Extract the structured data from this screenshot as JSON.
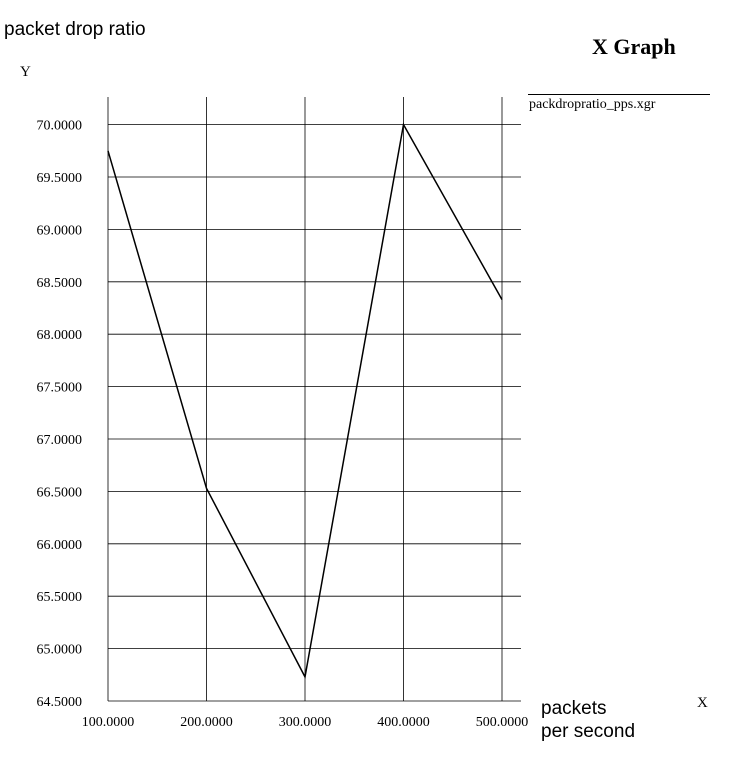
{
  "window": {
    "title": "X Graph"
  },
  "chart_data": {
    "type": "line",
    "title": "packet drop ratio",
    "xlabel": "packets\nper second",
    "ylabel": "",
    "x_axis_name": "X",
    "y_axis_name": "Y",
    "xlim": [
      100,
      500
    ],
    "ylim": [
      64.5,
      70.25
    ],
    "x_ticks": [
      "100.0000",
      "200.0000",
      "300.0000",
      "400.0000",
      "500.0000"
    ],
    "y_ticks": [
      "64.5000",
      "65.0000",
      "65.5000",
      "66.0000",
      "66.5000",
      "67.0000",
      "67.5000",
      "68.0000",
      "68.5000",
      "69.0000",
      "69.5000",
      "70.0000"
    ],
    "grid": true,
    "legend_position": "right",
    "series": [
      {
        "name": "packdropratio_pps.xgr",
        "color": "#000000",
        "x": [
          100,
          200,
          300,
          400,
          500
        ],
        "y": [
          69.75,
          66.53,
          64.73,
          70.0,
          68.33
        ]
      }
    ]
  }
}
